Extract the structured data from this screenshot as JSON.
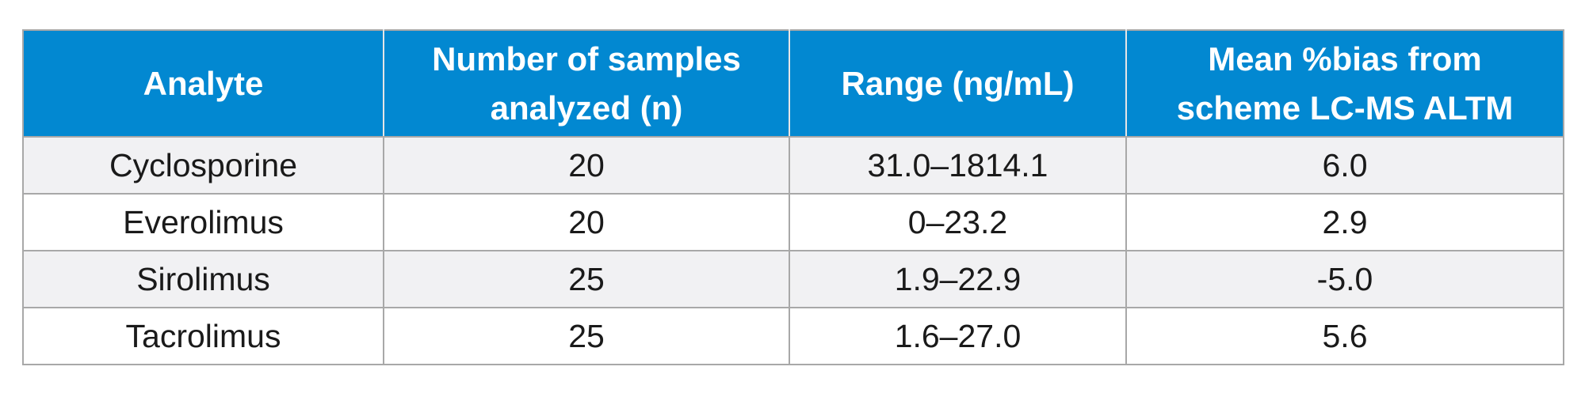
{
  "table": {
    "headers": [
      "Analyte",
      "Number of samples\nanalyzed (n)",
      "Range (ng/mL)",
      "Mean %bias from\nscheme LC-MS ALTM"
    ],
    "rows": [
      {
        "analyte": "Cyclosporine",
        "n": "20",
        "range": "31.0–1814.1",
        "bias": "6.0"
      },
      {
        "analyte": "Everolimus",
        "n": "20",
        "range": "0–23.2",
        "bias": "2.9"
      },
      {
        "analyte": "Sirolimus",
        "n": "25",
        "range": "1.9–22.9",
        "bias": "-5.0"
      },
      {
        "analyte": "Tacrolimus",
        "n": "25",
        "range": "1.6–27.0",
        "bias": "5.6"
      }
    ]
  }
}
